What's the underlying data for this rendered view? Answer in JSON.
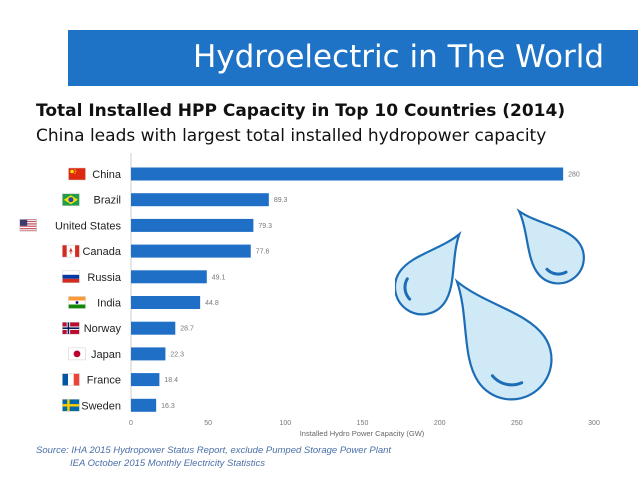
{
  "banner": {
    "title": "Hydroelectric in The World"
  },
  "heading": "Total Installed HPP Capacity in Top 10 Countries (2014)",
  "subheading": "China leads with largest total installed hydropower capacity",
  "source": {
    "line1": "Source: IHA 2015 Hydropower Status Report, exclude Pumped Storage Power Plant",
    "line2": "IEA October 2015 Monthly Electricity Statistics"
  },
  "colors": {
    "bar": "#1f6fc7",
    "banner": "#1f73c6",
    "drop": "#cfe9f6",
    "drop_stroke": "#1c6db6"
  },
  "chart_data": {
    "type": "bar",
    "orientation": "horizontal",
    "categories": [
      "China",
      "Brazil",
      "United States",
      "Canada",
      "Russia",
      "India",
      "Norway",
      "Japan",
      "France",
      "Sweden"
    ],
    "values": [
      280,
      89.3,
      79.3,
      77.6,
      49.1,
      44.8,
      28.7,
      22.3,
      18.4,
      16.3
    ],
    "value_labels": [
      "280",
      "89.3",
      "79.3",
      "77.6",
      "49.1",
      "44.8",
      "28.7",
      "22.3",
      "18.4",
      "16.3"
    ],
    "flag_icons": [
      "china-flag-icon",
      "brazil-flag-icon",
      "united-states-flag-icon",
      "canada-flag-icon",
      "russia-flag-icon",
      "india-flag-icon",
      "norway-flag-icon",
      "japan-flag-icon",
      "france-flag-icon",
      "sweden-flag-icon"
    ],
    "xlabel": "Installed Hydro Power Capacity (GW)",
    "xlim": [
      0,
      300
    ],
    "xticks": [
      "0",
      "50",
      "100",
      "150",
      "200",
      "250",
      "300"
    ],
    "grid": false,
    "legend": "none"
  }
}
